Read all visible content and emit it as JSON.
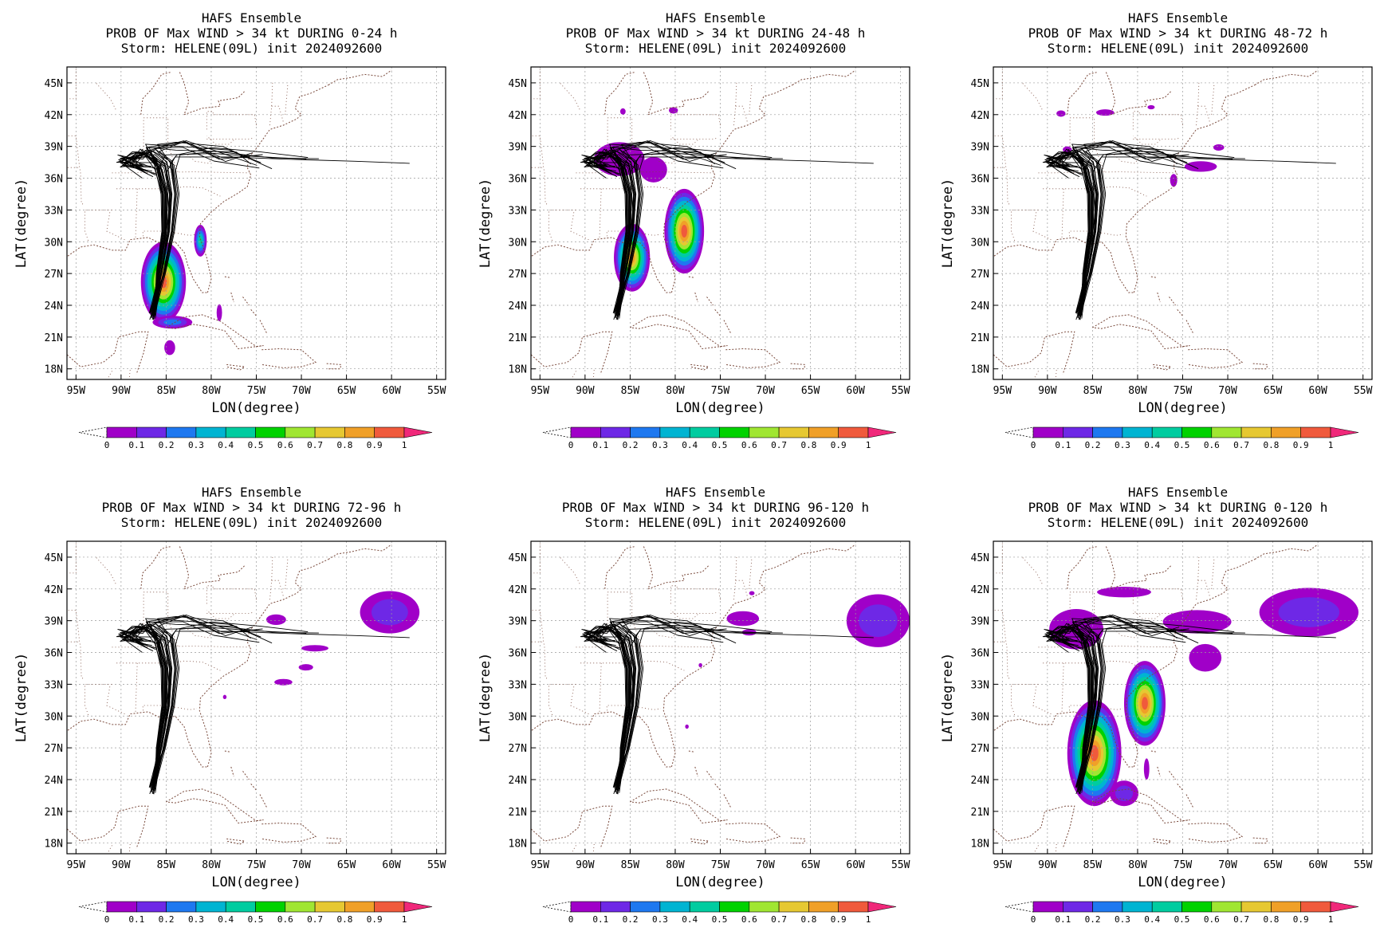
{
  "figure": {
    "panels": [
      {
        "title_lines": [
          "HAFS Ensemble",
          "PROB OF Max WIND > 34 kt DURING  0-24 h",
          "Storm: HELENE(09L) init 2024092600"
        ]
      },
      {
        "title_lines": [
          "HAFS Ensemble",
          "PROB OF Max WIND > 34 kt DURING 24-48 h",
          "Storm: HELENE(09L) init 2024092600"
        ]
      },
      {
        "title_lines": [
          "HAFS Ensemble",
          "PROB OF Max WIND > 34 kt DURING 48-72 h",
          "Storm: HELENE(09L) init 2024092600"
        ]
      },
      {
        "title_lines": [
          "HAFS Ensemble",
          "PROB OF Max WIND > 34 kt DURING 72-96 h",
          "Storm: HELENE(09L) init 2024092600"
        ]
      },
      {
        "title_lines": [
          "HAFS Ensemble",
          "PROB OF Max WIND > 34 kt DURING 96-120 h",
          "Storm: HELENE(09L) init 2024092600"
        ]
      },
      {
        "title_lines": [
          "HAFS Ensemble",
          "PROB OF Max WIND > 34 kt DURING 0-120 h",
          "Storm: HELENE(09L) init 2024092600"
        ]
      }
    ],
    "xlabel": "LON(degree)",
    "ylabel": "LAT(degree)",
    "lon_ticks": [
      "95W",
      "90W",
      "85W",
      "80W",
      "75W",
      "70W",
      "65W",
      "60W",
      "55W"
    ],
    "lat_ticks": [
      "45N",
      "42N",
      "39N",
      "36N",
      "33N",
      "30N",
      "27N",
      "24N",
      "21N",
      "18N"
    ],
    "colorbar": {
      "labels": [
        "0",
        "0.1",
        "0.2",
        "0.3",
        "0.4",
        "0.5",
        "0.6",
        "0.7",
        "0.8",
        "0.9",
        "1"
      ],
      "colors": [
        "#a000c8",
        "#6e28e6",
        "#1e78f0",
        "#00b4d2",
        "#00cca0",
        "#00d200",
        "#a0e632",
        "#e6c832",
        "#f0a028",
        "#f05a3c",
        "#f0287a"
      ]
    },
    "map_colors": {
      "coast": "#7a4a3c",
      "grid": "#9a9a9a",
      "track": "#000000"
    }
  }
}
